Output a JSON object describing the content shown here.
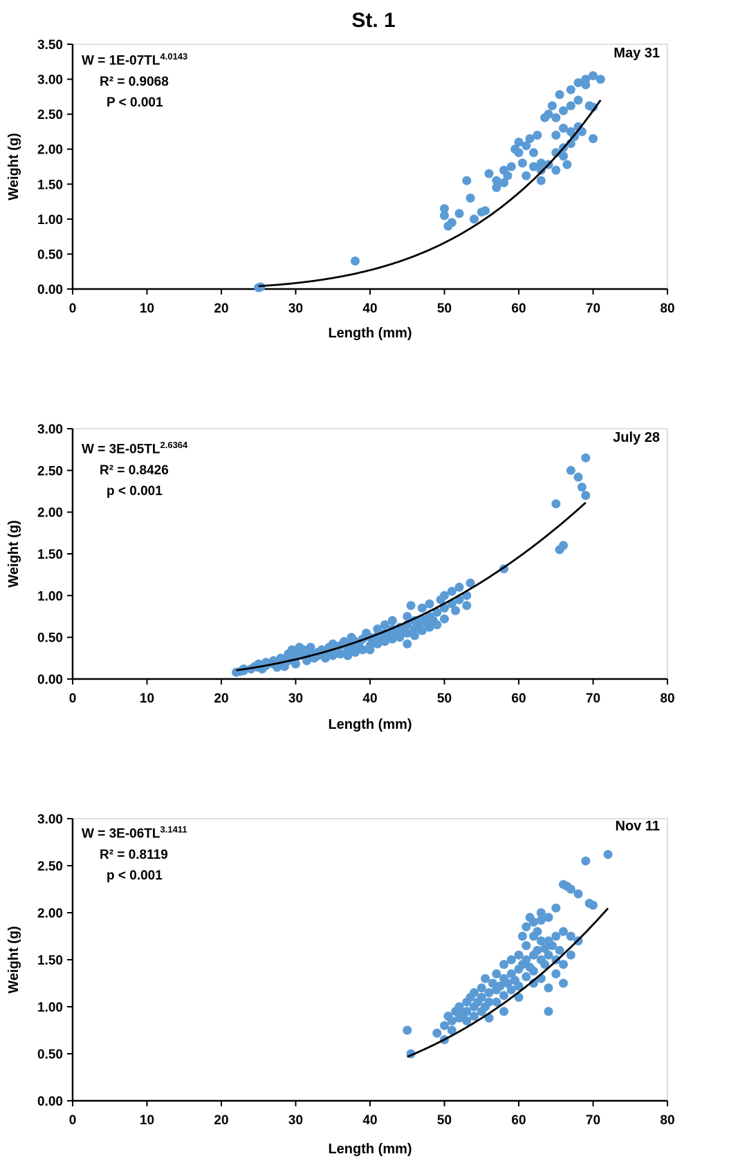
{
  "figure": {
    "title": "St. 1"
  },
  "colors": {
    "point": "#5B9BD5",
    "curve": "#000000",
    "axis": "#000000",
    "border": "#bfbfbf"
  },
  "chart_data": [
    {
      "type": "scatter",
      "label": "May 31",
      "eq_base": "W = 1E-07TL",
      "eq_exp": "4.0143",
      "r2": "R² = 0.9068",
      "p": "P < 0.001",
      "xlabel": "Length (mm)",
      "ylabel": "Weight (g)",
      "xlim": [
        0,
        80
      ],
      "ylim": [
        0,
        3.5
      ],
      "xticks": [
        0,
        10,
        20,
        30,
        40,
        50,
        60,
        70,
        80
      ],
      "yticks": [
        0,
        0.5,
        1,
        1.5,
        2,
        2.5,
        3,
        3.5
      ],
      "grid": false,
      "fit": {
        "a": 1e-07,
        "b": 4.0143,
        "range": [
          25,
          71
        ]
      },
      "points": [
        [
          25,
          0.02
        ],
        [
          25.3,
          0.03
        ],
        [
          38,
          0.4
        ],
        [
          50,
          1.15
        ],
        [
          50,
          1.05
        ],
        [
          50.5,
          0.9
        ],
        [
          51,
          0.95
        ],
        [
          52,
          1.08
        ],
        [
          53,
          1.55
        ],
        [
          53.5,
          1.3
        ],
        [
          54,
          1.0
        ],
        [
          55,
          1.1
        ],
        [
          55.5,
          1.12
        ],
        [
          56,
          1.65
        ],
        [
          57,
          1.55
        ],
        [
          57,
          1.45
        ],
        [
          58,
          1.52
        ],
        [
          58,
          1.7
        ],
        [
          58.5,
          1.62
        ],
        [
          59,
          1.75
        ],
        [
          59.5,
          2.0
        ],
        [
          60,
          2.1
        ],
        [
          60,
          1.95
        ],
        [
          60.5,
          1.8
        ],
        [
          61,
          2.05
        ],
        [
          61,
          1.62
        ],
        [
          61.5,
          2.15
        ],
        [
          62,
          1.95
        ],
        [
          62,
          1.75
        ],
        [
          62.5,
          2.2
        ],
        [
          63,
          1.8
        ],
        [
          63,
          1.7
        ],
        [
          63,
          1.55
        ],
        [
          63.5,
          2.45
        ],
        [
          64,
          2.5
        ],
        [
          64,
          1.78
        ],
        [
          64.5,
          2.62
        ],
        [
          65,
          2.45
        ],
        [
          65,
          2.2
        ],
        [
          65,
          1.95
        ],
        [
          65,
          1.7
        ],
        [
          65.5,
          2.78
        ],
        [
          66,
          2.55
        ],
        [
          66,
          2.3
        ],
        [
          66,
          2.02
        ],
        [
          66,
          1.9
        ],
        [
          66.5,
          1.78
        ],
        [
          67,
          2.85
        ],
        [
          67,
          2.62
        ],
        [
          67,
          2.25
        ],
        [
          67,
          2.08
        ],
        [
          67.5,
          2.18
        ],
        [
          68,
          2.95
        ],
        [
          68,
          2.7
        ],
        [
          68,
          2.32
        ],
        [
          68.5,
          2.25
        ],
        [
          69,
          3.0
        ],
        [
          69,
          2.92
        ],
        [
          69.5,
          2.62
        ],
        [
          70,
          3.05
        ],
        [
          70,
          2.6
        ],
        [
          70,
          2.15
        ],
        [
          71,
          3.0
        ]
      ]
    },
    {
      "type": "scatter",
      "label": "July 28",
      "eq_base": "W = 3E-05TL",
      "eq_exp": "2.6364",
      "r2": "R² = 0.8426",
      "p": "p < 0.001",
      "xlabel": "Length (mm)",
      "ylabel": "Weight (g)",
      "xlim": [
        0,
        80
      ],
      "ylim": [
        0,
        3
      ],
      "xticks": [
        0,
        10,
        20,
        30,
        40,
        50,
        60,
        70,
        80
      ],
      "yticks": [
        0,
        0.5,
        1,
        1.5,
        2,
        2.5,
        3
      ],
      "grid": false,
      "fit": {
        "a": 3e-05,
        "b": 2.6364,
        "range": [
          22,
          69
        ]
      },
      "points": [
        [
          22,
          0.08
        ],
        [
          22.5,
          0.09
        ],
        [
          23,
          0.1
        ],
        [
          23,
          0.12
        ],
        [
          24,
          0.12
        ],
        [
          24.5,
          0.15
        ],
        [
          25,
          0.14
        ],
        [
          25,
          0.18
        ],
        [
          25.5,
          0.12
        ],
        [
          26,
          0.16
        ],
        [
          26,
          0.2
        ],
        [
          27,
          0.18
        ],
        [
          27,
          0.22
        ],
        [
          27.5,
          0.14
        ],
        [
          28,
          0.2
        ],
        [
          28,
          0.25
        ],
        [
          28.5,
          0.15
        ],
        [
          29,
          0.22
        ],
        [
          29,
          0.3
        ],
        [
          29.5,
          0.35
        ],
        [
          30,
          0.25
        ],
        [
          30,
          0.32
        ],
        [
          30,
          0.18
        ],
        [
          30.5,
          0.38
        ],
        [
          31,
          0.28
        ],
        [
          31,
          0.35
        ],
        [
          31.5,
          0.22
        ],
        [
          32,
          0.3
        ],
        [
          32,
          0.38
        ],
        [
          32.5,
          0.25
        ],
        [
          33,
          0.32
        ],
        [
          33,
          0.28
        ],
        [
          33.5,
          0.35
        ],
        [
          34,
          0.3
        ],
        [
          34,
          0.25
        ],
        [
          34.5,
          0.38
        ],
        [
          35,
          0.32
        ],
        [
          35,
          0.28
        ],
        [
          35,
          0.42
        ],
        [
          35.5,
          0.35
        ],
        [
          36,
          0.3
        ],
        [
          36,
          0.4
        ],
        [
          36.5,
          0.45
        ],
        [
          37,
          0.35
        ],
        [
          37,
          0.42
        ],
        [
          37,
          0.28
        ],
        [
          37.5,
          0.5
        ],
        [
          38,
          0.38
        ],
        [
          38,
          0.45
        ],
        [
          38,
          0.32
        ],
        [
          38.5,
          0.42
        ],
        [
          39,
          0.35
        ],
        [
          39,
          0.48
        ],
        [
          39.5,
          0.55
        ],
        [
          40,
          0.4
        ],
        [
          40,
          0.5
        ],
        [
          40,
          0.35
        ],
        [
          40.5,
          0.45
        ],
        [
          41,
          0.52
        ],
        [
          41,
          0.42
        ],
        [
          41,
          0.6
        ],
        [
          41.5,
          0.48
        ],
        [
          42,
          0.55
        ],
        [
          42,
          0.45
        ],
        [
          42,
          0.65
        ],
        [
          42.5,
          0.52
        ],
        [
          43,
          0.48
        ],
        [
          43,
          0.6
        ],
        [
          43,
          0.7
        ],
        [
          43.5,
          0.55
        ],
        [
          44,
          0.62
        ],
        [
          44,
          0.5
        ],
        [
          44.5,
          0.58
        ],
        [
          45,
          0.65
        ],
        [
          45,
          0.55
        ],
        [
          45,
          0.75
        ],
        [
          45,
          0.42
        ],
        [
          45.5,
          0.88
        ],
        [
          46,
          0.6
        ],
        [
          46,
          0.7
        ],
        [
          46,
          0.52
        ],
        [
          46.5,
          0.65
        ],
        [
          47,
          0.72
        ],
        [
          47,
          0.58
        ],
        [
          47,
          0.85
        ],
        [
          47.5,
          0.68
        ],
        [
          48,
          0.75
        ],
        [
          48,
          0.62
        ],
        [
          48,
          0.9
        ],
        [
          48.5,
          0.7
        ],
        [
          49,
          0.8
        ],
        [
          49,
          0.65
        ],
        [
          49.5,
          0.95
        ],
        [
          50,
          0.85
        ],
        [
          50,
          0.72
        ],
        [
          50,
          1.0
        ],
        [
          51,
          0.9
        ],
        [
          51,
          1.05
        ],
        [
          51.5,
          0.82
        ],
        [
          52,
          0.95
        ],
        [
          52,
          1.1
        ],
        [
          53,
          1.0
        ],
        [
          53,
          0.88
        ],
        [
          53.5,
          1.15
        ],
        [
          58,
          1.32
        ],
        [
          65,
          2.1
        ],
        [
          65.5,
          1.55
        ],
        [
          66,
          1.6
        ],
        [
          67,
          2.5
        ],
        [
          68,
          2.42
        ],
        [
          68.5,
          2.3
        ],
        [
          69,
          2.65
        ],
        [
          69,
          2.2
        ]
      ]
    },
    {
      "type": "scatter",
      "label": "Nov 11",
      "eq_base": "W = 3E-06TL",
      "eq_exp": "3.1411",
      "r2": "R² = 0.8119",
      "p": "p < 0.001",
      "xlabel": "Length (mm)",
      "ylabel": "Weight (g)",
      "xlim": [
        0,
        80
      ],
      "ylim": [
        0,
        3
      ],
      "xticks": [
        0,
        10,
        20,
        30,
        40,
        50,
        60,
        70,
        80
      ],
      "yticks": [
        0,
        0.5,
        1,
        1.5,
        2,
        2.5,
        3
      ],
      "grid": false,
      "fit": {
        "a": 3e-06,
        "b": 3.1411,
        "range": [
          45,
          72
        ]
      },
      "points": [
        [
          45,
          0.75
        ],
        [
          45.5,
          0.5
        ],
        [
          49,
          0.72
        ],
        [
          50,
          0.8
        ],
        [
          50,
          0.65
        ],
        [
          50.5,
          0.9
        ],
        [
          51,
          0.85
        ],
        [
          51,
          0.75
        ],
        [
          51.5,
          0.95
        ],
        [
          52,
          0.88
        ],
        [
          52,
          1.0
        ],
        [
          52.5,
          0.92
        ],
        [
          53,
          0.95
        ],
        [
          53,
          1.05
        ],
        [
          53,
          0.85
        ],
        [
          53.5,
          1.1
        ],
        [
          54,
          1.0
        ],
        [
          54,
          0.9
        ],
        [
          54,
          1.15
        ],
        [
          54.5,
          1.05
        ],
        [
          55,
          1.1
        ],
        [
          55,
          0.95
        ],
        [
          55,
          1.2
        ],
        [
          55.5,
          1.0
        ],
        [
          55.5,
          1.3
        ],
        [
          56,
          1.15
        ],
        [
          56,
          1.05
        ],
        [
          56,
          0.88
        ],
        [
          56.5,
          1.25
        ],
        [
          57,
          1.18
        ],
        [
          57,
          1.35
        ],
        [
          57,
          1.05
        ],
        [
          57.5,
          1.22
        ],
        [
          58,
          1.3
        ],
        [
          58,
          1.12
        ],
        [
          58,
          1.45
        ],
        [
          58,
          0.95
        ],
        [
          58.5,
          1.25
        ],
        [
          59,
          1.35
        ],
        [
          59,
          1.18
        ],
        [
          59,
          1.5
        ],
        [
          59.5,
          1.28
        ],
        [
          60,
          1.4
        ],
        [
          60,
          1.22
        ],
        [
          60,
          1.55
        ],
        [
          60,
          1.1
        ],
        [
          60.5,
          1.45
        ],
        [
          60.5,
          1.75
        ],
        [
          61,
          1.5
        ],
        [
          61,
          1.32
        ],
        [
          61,
          1.65
        ],
        [
          61,
          1.85
        ],
        [
          61.5,
          1.42
        ],
        [
          61.5,
          1.95
        ],
        [
          62,
          1.55
        ],
        [
          62,
          1.38
        ],
        [
          62,
          1.75
        ],
        [
          62,
          1.9
        ],
        [
          62,
          1.25
        ],
        [
          62.5,
          1.6
        ],
        [
          62.5,
          1.8
        ],
        [
          63,
          1.5
        ],
        [
          63,
          1.7
        ],
        [
          63,
          1.92
        ],
        [
          63,
          2.0
        ],
        [
          63,
          1.3
        ],
        [
          63.5,
          1.62
        ],
        [
          63.5,
          1.45
        ],
        [
          64,
          1.7
        ],
        [
          64,
          1.55
        ],
        [
          64,
          1.95
        ],
        [
          64,
          1.2
        ],
        [
          64,
          0.95
        ],
        [
          64.5,
          1.65
        ],
        [
          65,
          1.75
        ],
        [
          65,
          1.5
        ],
        [
          65,
          2.05
        ],
        [
          65,
          1.35
        ],
        [
          65.5,
          1.6
        ],
        [
          66,
          1.8
        ],
        [
          66,
          2.3
        ],
        [
          66,
          1.45
        ],
        [
          66,
          1.25
        ],
        [
          66.5,
          2.28
        ],
        [
          67,
          2.25
        ],
        [
          67,
          1.75
        ],
        [
          67,
          1.55
        ],
        [
          68,
          2.2
        ],
        [
          68,
          1.7
        ],
        [
          69,
          2.55
        ],
        [
          69.5,
          2.1
        ],
        [
          70,
          2.08
        ],
        [
          72,
          2.62
        ]
      ]
    }
  ]
}
